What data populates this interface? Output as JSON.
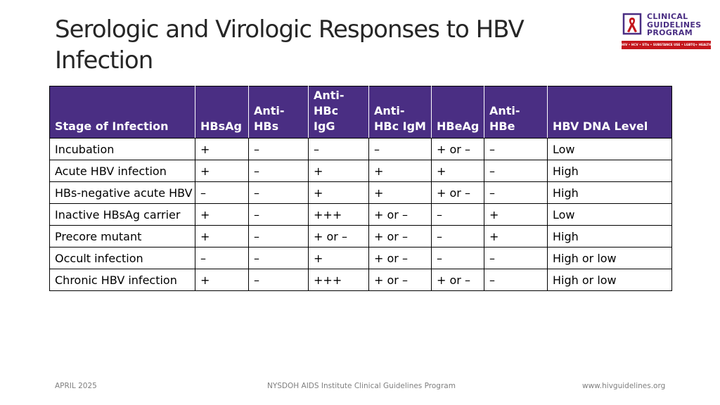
{
  "title": "Serologic and Virologic Responses to HBV Infection",
  "logo": {
    "lines": [
      "CLINICAL",
      "GUIDELINES",
      "PROGRAM"
    ],
    "tagline": "HIV • HCV • STIs • SUBSTANCE USE • LGBTQ+ HEALTH",
    "colors": {
      "purple": "#4a2e83",
      "red": "#c4161c"
    }
  },
  "table": {
    "header_color": "#4a2e83",
    "columns": [
      "Stage of Infection",
      "HBsAg",
      "Anti-HBs",
      "Anti-HBc IgG",
      "Anti-HBc IgM",
      "HBeAg",
      "Anti-HBe",
      "HBV DNA Level"
    ],
    "rows": [
      [
        "Incubation",
        "+",
        "–",
        "–",
        "–",
        "+ or –",
        "–",
        "Low"
      ],
      [
        "Acute HBV infection",
        "+",
        "–",
        "+",
        "+",
        "+",
        "–",
        "High"
      ],
      [
        "HBs-negative acute HBV",
        "–",
        "–",
        "+",
        "+",
        "+ or –",
        "–",
        "High"
      ],
      [
        "Inactive HBsAg carrier",
        "+",
        "–",
        "+++",
        "+ or –",
        "–",
        "+",
        "Low"
      ],
      [
        "Precore mutant",
        "+",
        "–",
        "+ or –",
        "+ or –",
        "–",
        "+",
        "High"
      ],
      [
        "Occult infection",
        "–",
        "–",
        "+",
        "+ or –",
        "–",
        "–",
        "High or low"
      ],
      [
        "Chronic HBV infection",
        "+",
        "–",
        "+++",
        "+ or –",
        "+ or –",
        "–",
        "High or low"
      ]
    ]
  },
  "footer": {
    "date": "APRIL 2025",
    "program": "NYSDOH AIDS Institute Clinical Guidelines Program",
    "url": "www.hivguidelines.org"
  }
}
